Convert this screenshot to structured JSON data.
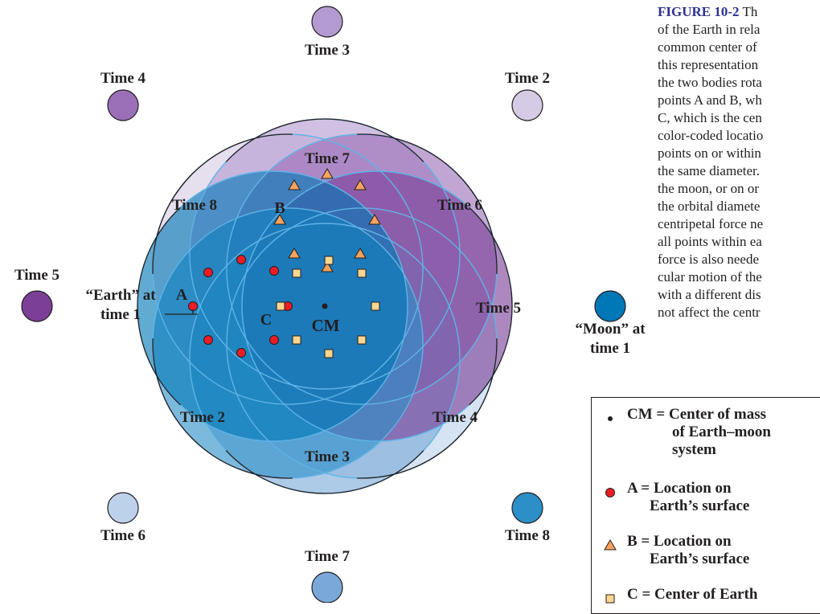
{
  "figure_caption": {
    "id": "FIGURE 10-2",
    "lines": [
      "Th",
      "of the Earth in rela",
      "common center of",
      "this representation",
      "the two bodies rota",
      "points A and B, wh",
      "C, which is the cen",
      "color-coded locatio",
      "points on or within",
      "the same diameter.",
      "the moon, or on or",
      "the orbital diamete",
      "centripetal force ne",
      "all points within ea",
      "force is also neede",
      "cular motion of the",
      "with a different dis",
      "not affect the centr"
    ]
  },
  "moon_labels": {
    "time_1": "“Moon” at\ntime 1",
    "time_2": "Time 2",
    "time_3": "Time 3",
    "time_4": "Time 4",
    "time_5": "Time 5",
    "time_6": "Time 6",
    "time_7": "Time 7",
    "time_8": "Time 8"
  },
  "earth_labels": {
    "time_1": "“Earth” at\ntime 1",
    "time_2": "Time 2",
    "time_3": "Time 3",
    "time_4": "Time 4",
    "time_5": "Time 5",
    "time_6": "Time 6",
    "time_7": "Time 7",
    "time_8": "Time 8"
  },
  "point_labels": {
    "a": "A",
    "b": "B",
    "c": "C",
    "cm": "CM"
  },
  "colors": {
    "time_1": "#0077b6",
    "time_2": "#d6cbe4",
    "time_3": "#b39ad0",
    "time_4": "#9b6fb8",
    "time_5": "#7b3f98",
    "time_6": "#bdd2ea",
    "time_7": "#7aa9d9",
    "time_8": "#2c8fc8",
    "point_a": "#ee1c25",
    "point_b": "#f7a35c",
    "point_c": "#fbd68e",
    "orbit_line": "#5fb3e6"
  },
  "legend": [
    {
      "symbol": "dot-icon",
      "lines": [
        "CM = Center of mass",
        "of Earth–moon",
        "system"
      ]
    },
    {
      "symbol": "red-circle-icon",
      "lines": [
        "A = Location on",
        "Earth’s surface"
      ]
    },
    {
      "symbol": "orange-triangle-icon",
      "lines": [
        "B = Location on",
        "Earth’s surface"
      ]
    },
    {
      "symbol": "yellow-square-icon",
      "lines": [
        "C = Center of Earth"
      ]
    }
  ]
}
